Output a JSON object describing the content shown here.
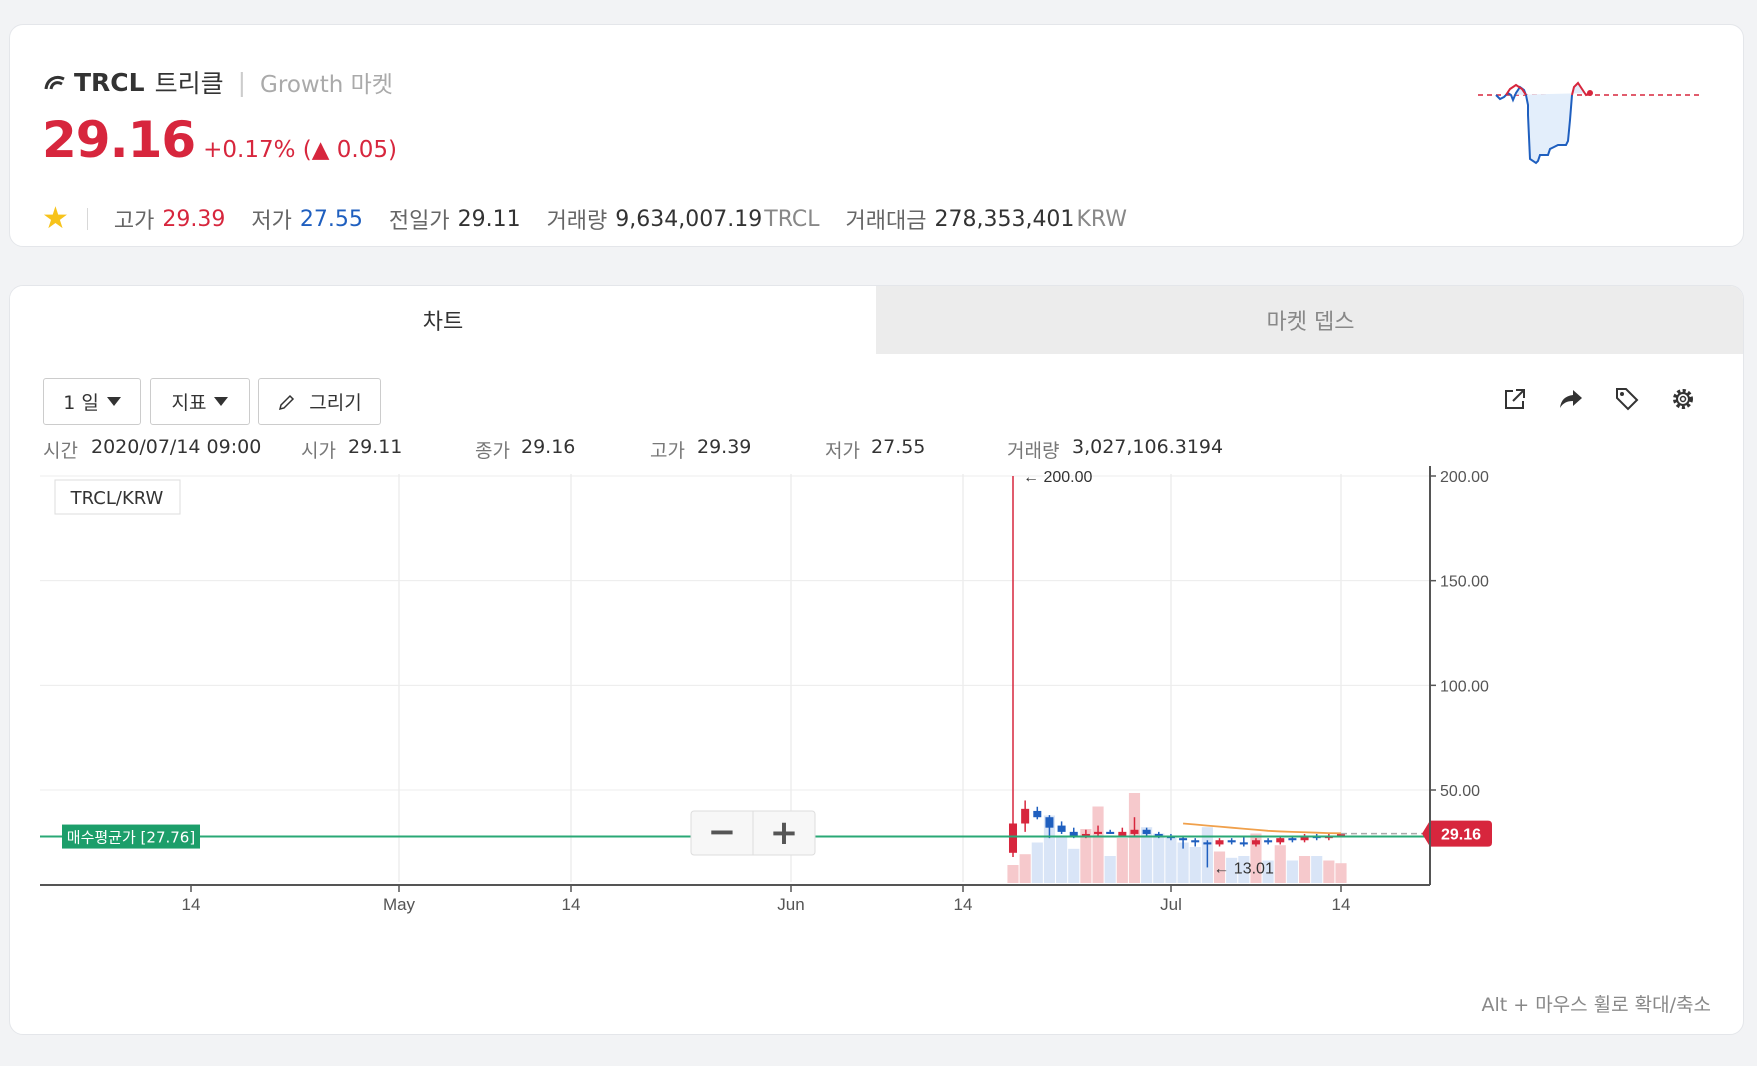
{
  "header": {
    "symbol": "TRCL",
    "korean_name": "트리클",
    "separator": "|",
    "market": "Growth 마켓",
    "price": "29.16",
    "change": "+0.17% (▲ 0.05)",
    "stats": {
      "high_label": "고가",
      "high": "29.39",
      "low_label": "저가",
      "low": "27.55",
      "prev_label": "전일가",
      "prev": "29.11",
      "volume_label": "거래량",
      "volume": "9,634,007.19",
      "volume_unit": "TRCL",
      "amount_label": "거래대금",
      "amount": "278,353,401",
      "amount_unit": "KRW"
    },
    "colors": {
      "up": "#d7263d",
      "down": "#1f5fbf"
    }
  },
  "tabs": [
    {
      "label": "차트",
      "active": true
    },
    {
      "label": "마켓 뎁스",
      "active": false
    }
  ],
  "toolbar": {
    "interval": "1 일",
    "indicator": "지표",
    "draw": "그리기",
    "icons": [
      "external-link-icon",
      "share-icon",
      "tag-icon",
      "gear-icon"
    ]
  },
  "ohlc": {
    "time_label": "시간",
    "time": "2020/07/14 09:00",
    "open_label": "시가",
    "open": "29.11",
    "close_label": "종가",
    "close": "29.16",
    "high_label": "고가",
    "high": "29.39",
    "low_label": "저가",
    "low": "27.55",
    "volume_label": "거래량",
    "volume": "3,027,106.3194"
  },
  "chart_data": {
    "type": "candlestick",
    "pair_label": "TRCL/KRW",
    "avg_buy_label": "매수평균가 [27.76]",
    "avg_buy_value": 27.76,
    "current_price_label": "29.16",
    "current_price": 29.16,
    "max_label": "← 200.00",
    "min_label": "← 13.01",
    "y_ticks": [
      "200.00",
      "150.00",
      "100.00",
      "50.00"
    ],
    "ylim": [
      0,
      200
    ],
    "x_ticks": [
      "14",
      "May",
      "14",
      "Jun",
      "14",
      "Jul",
      "14"
    ],
    "zoom_out": "−",
    "zoom_in": "+",
    "candles": [
      {
        "date": "2020-06-17",
        "o": 20,
        "h": 200,
        "l": 18,
        "c": 34
      },
      {
        "date": "2020-06-18",
        "o": 34,
        "h": 45,
        "l": 30,
        "c": 41
      },
      {
        "date": "2020-06-19",
        "o": 40,
        "h": 42,
        "l": 36,
        "c": 37
      },
      {
        "date": "2020-06-20",
        "o": 37,
        "h": 38,
        "l": 27,
        "c": 32
      },
      {
        "date": "2020-06-21",
        "o": 33,
        "h": 35,
        "l": 29,
        "c": 30
      },
      {
        "date": "2020-06-22",
        "o": 30,
        "h": 32,
        "l": 27,
        "c": 28
      },
      {
        "date": "2020-06-23",
        "o": 28,
        "h": 31,
        "l": 27,
        "c": 29
      },
      {
        "date": "2020-06-24",
        "o": 29,
        "h": 33,
        "l": 28,
        "c": 30
      },
      {
        "date": "2020-06-25",
        "o": 30,
        "h": 31,
        "l": 29,
        "c": 29
      },
      {
        "date": "2020-06-26",
        "o": 28,
        "h": 32,
        "l": 28,
        "c": 30
      },
      {
        "date": "2020-06-27",
        "o": 29,
        "h": 37,
        "l": 28,
        "c": 31
      },
      {
        "date": "2020-06-28",
        "o": 31,
        "h": 32,
        "l": 28,
        "c": 29
      },
      {
        "date": "2020-06-29",
        "o": 29,
        "h": 30,
        "l": 27,
        "c": 28
      },
      {
        "date": "2020-06-30",
        "o": 28,
        "h": 29,
        "l": 26,
        "c": 27
      },
      {
        "date": "2020-07-01",
        "o": 27,
        "h": 28,
        "l": 22,
        "c": 26
      },
      {
        "date": "2020-07-02",
        "o": 26,
        "h": 27,
        "l": 23,
        "c": 25
      },
      {
        "date": "2020-07-03",
        "o": 25,
        "h": 26,
        "l": 13.01,
        "c": 24
      },
      {
        "date": "2020-07-04",
        "o": 24,
        "h": 27,
        "l": 23,
        "c": 26
      },
      {
        "date": "2020-07-05",
        "o": 26,
        "h": 27,
        "l": 24,
        "c": 25
      },
      {
        "date": "2020-07-06",
        "o": 25,
        "h": 28,
        "l": 23,
        "c": 24
      },
      {
        "date": "2020-07-07",
        "o": 24,
        "h": 27,
        "l": 23,
        "c": 26
      },
      {
        "date": "2020-07-08",
        "o": 26,
        "h": 27,
        "l": 24,
        "c": 25
      },
      {
        "date": "2020-07-09",
        "o": 25,
        "h": 28,
        "l": 24,
        "c": 27
      },
      {
        "date": "2020-07-10",
        "o": 27,
        "h": 28,
        "l": 25,
        "c": 26
      },
      {
        "date": "2020-07-11",
        "o": 26,
        "h": 29,
        "l": 25,
        "c": 28
      },
      {
        "date": "2020-07-12",
        "o": 28,
        "h": 29,
        "l": 26,
        "c": 27
      },
      {
        "date": "2020-07-13",
        "o": 27,
        "h": 29,
        "l": 26,
        "c": 28
      },
      {
        "date": "2020-07-14",
        "o": 29.11,
        "h": 29.39,
        "l": 27.55,
        "c": 29.16
      }
    ],
    "volume_relative": [
      0.2,
      0.32,
      0.45,
      0.75,
      0.52,
      0.38,
      0.6,
      0.85,
      0.3,
      0.5,
      1.0,
      0.62,
      0.55,
      0.5,
      0.45,
      0.4,
      0.62,
      0.35,
      0.28,
      0.3,
      0.55,
      0.25,
      0.42,
      0.25,
      0.3,
      0.3,
      0.25,
      0.22
    ],
    "moving_average": [
      null,
      null,
      null,
      null,
      null,
      null,
      null,
      null,
      null,
      null,
      null,
      null,
      null,
      null,
      34,
      33.5,
      33,
      32.5,
      32,
      31.5,
      31,
      30.5,
      30.2,
      30,
      29.8,
      29.6,
      29.4,
      29.3
    ]
  },
  "footer_hint": "Alt + 마우스 휠로 확대/축소"
}
